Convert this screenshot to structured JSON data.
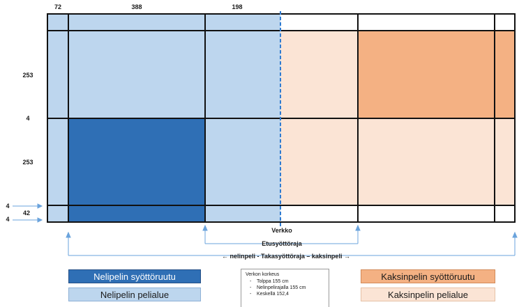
{
  "dimensions": {
    "top": [
      "72",
      "388",
      "198"
    ],
    "left": [
      "253",
      "4",
      "253",
      "4",
      "42",
      "4"
    ]
  },
  "labels": {
    "net": "Verkko",
    "front_service_line": "Etusyöttöraja",
    "back_service_line": "← nelinpeli - Takasyöttöraja – kaksinpeli →"
  },
  "legend": {
    "doubles_service": "Nelipelin syöttöruutu",
    "doubles_play": "Nelipelin pelialue",
    "singles_service": "Kaksinpelin syöttöruutu",
    "singles_play": "Kaksinpelin pelialue"
  },
  "net_info": {
    "title": "Verkon korkeus",
    "items": [
      "Tolppa 155 cm",
      "Nelinpelirajalla 155 cm",
      "Keskellä 152,4"
    ]
  },
  "colors": {
    "doubles_service": "#2f6fb5",
    "doubles_play": "#bdd6ee",
    "singles_service": "#f4b183",
    "singles_play": "#fbe4d5",
    "net": "#2f7bd1",
    "arrow": "#6aa3dc"
  }
}
